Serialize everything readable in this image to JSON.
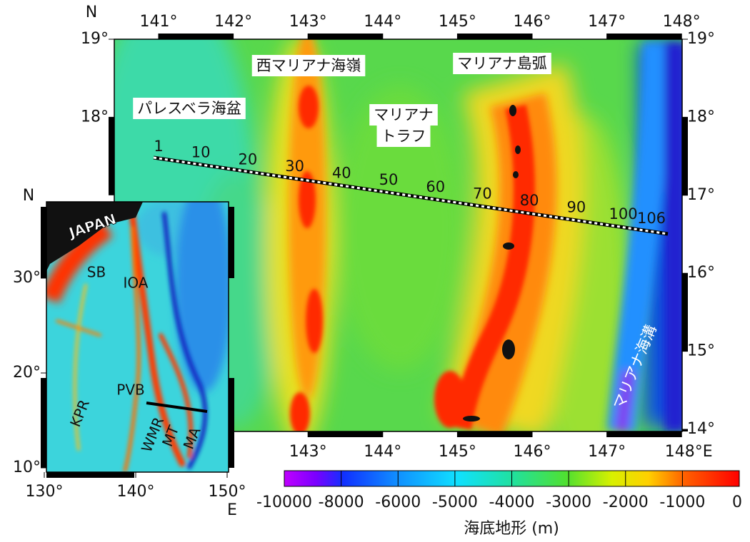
{
  "main_map": {
    "north_label": "N",
    "lat_ticks_left": [
      {
        "value": 19,
        "label": "19°"
      },
      {
        "value": 18,
        "label": "18°"
      }
    ],
    "lat_ticks_right": [
      {
        "value": 19,
        "label": "19°"
      },
      {
        "value": 18,
        "label": "18°"
      },
      {
        "value": 17,
        "label": "17°"
      },
      {
        "value": 16,
        "label": "16°"
      },
      {
        "value": 15,
        "label": "15°"
      },
      {
        "value": 14,
        "label": "14°"
      }
    ],
    "lon_ticks_top": [
      {
        "value": 141,
        "label": "141°"
      },
      {
        "value": 142,
        "label": "142°"
      },
      {
        "value": 143,
        "label": "143°"
      },
      {
        "value": 144,
        "label": "144°"
      },
      {
        "value": 145,
        "label": "145°"
      },
      {
        "value": 146,
        "label": "146°"
      },
      {
        "value": 147,
        "label": "147°"
      },
      {
        "value": 148,
        "label": "148°"
      }
    ],
    "lon_ticks_bottom": [
      {
        "value": 143,
        "label": "143°"
      },
      {
        "value": 144,
        "label": "144°"
      },
      {
        "value": 145,
        "label": "145°"
      },
      {
        "value": 146,
        "label": "146°"
      },
      {
        "value": 147,
        "label": "147°"
      },
      {
        "value": 148,
        "label": "148°E"
      }
    ],
    "labels": {
      "west_mariana_ridge": "西マリアナ海嶺",
      "mariana_arc": "マリアナ島弧",
      "parece_vela_basin": "パレスベラ海盆",
      "mariana_trough_1": "マリアナ",
      "mariana_trough_2": "トラフ",
      "mariana_trench": "マリアナ海溝"
    },
    "profile_points": [
      1,
      10,
      20,
      30,
      40,
      50,
      60,
      70,
      80,
      90,
      100,
      106
    ]
  },
  "inset_map": {
    "north_label": "N",
    "east_label": "E",
    "lat_ticks": [
      {
        "value": 30,
        "label": "30°"
      },
      {
        "value": 20,
        "label": "20°"
      },
      {
        "value": 10,
        "label": "10°"
      }
    ],
    "lon_ticks": [
      {
        "value": 130,
        "label": "130°"
      },
      {
        "value": 140,
        "label": "140°"
      },
      {
        "value": 150,
        "label": "150°"
      }
    ],
    "labels": {
      "japan": "JAPAN",
      "sb": "SB",
      "ioa": "IOA",
      "kpr": "KPR",
      "pvb": "PVB",
      "wmr": "WMR",
      "mt": "MT",
      "ma": "MA"
    }
  },
  "colorbar": {
    "title": "海底地形 (m)",
    "ticks": [
      -10000,
      -8000,
      -6000,
      -5000,
      -4000,
      -3000,
      -2000,
      -1000,
      0
    ]
  }
}
